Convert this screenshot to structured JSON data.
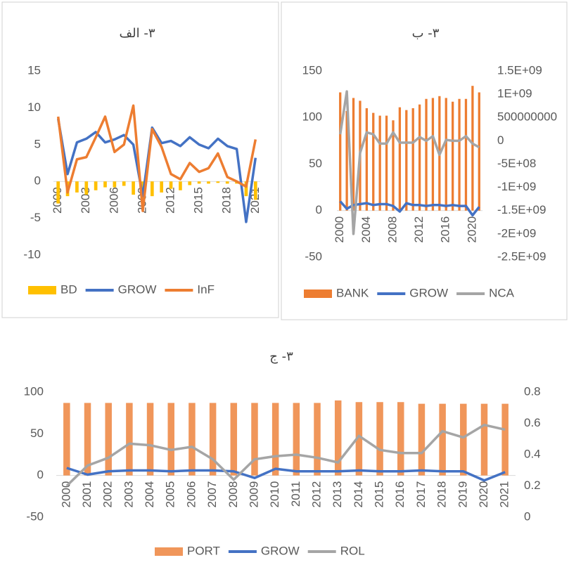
{
  "chart_data": [
    {
      "type": "combo",
      "title": "۳- الف",
      "categories": [
        "2000",
        null,
        null,
        "2003",
        null,
        null,
        "2006",
        null,
        null,
        "2009",
        null,
        null,
        "2012",
        null,
        null,
        "2015",
        null,
        null,
        "2018",
        null,
        null,
        "2021"
      ],
      "ylim": [
        -10,
        15
      ],
      "yticks": [
        -10,
        -5,
        0,
        5,
        10,
        15
      ],
      "grid": false,
      "series": [
        {
          "name": "BD",
          "type": "bar",
          "color": "#ffc000",
          "values": [
            -3,
            -2,
            -1.5,
            -1.8,
            -1.2,
            -0.8,
            -0.8,
            -0.6,
            -1.8,
            -2.5,
            -2,
            -1.5,
            -1,
            -1.2,
            -0.5,
            -0.3,
            -0.3,
            -0.2,
            -0.3,
            -0.3,
            -2,
            -2.5
          ]
        },
        {
          "name": "GROW",
          "type": "line",
          "color": "#4472c4",
          "values": [
            8.5,
            1,
            5.3,
            5.8,
            6.7,
            5.3,
            5.7,
            6.3,
            5,
            -2,
            7.3,
            5.2,
            5.5,
            4.8,
            6,
            5,
            4.5,
            5.8,
            4.8,
            4.4,
            -5.5,
            3.2
          ]
        },
        {
          "name": "InF",
          "type": "line",
          "color": "#ed7d31",
          "values": [
            8.8,
            -1.5,
            3,
            3.3,
            6,
            8.8,
            4,
            5,
            10.3,
            -4,
            7.1,
            4.7,
            1,
            0.3,
            2.5,
            1.3,
            1.8,
            3.8,
            0.6,
            0,
            -0.7,
            5.7
          ]
        }
      ]
    },
    {
      "type": "combo",
      "title": "۳- ب",
      "categories": [
        "2000",
        null,
        null,
        null,
        "2004",
        null,
        null,
        null,
        "2008",
        null,
        null,
        null,
        "2012",
        null,
        null,
        null,
        "2016",
        null,
        null,
        null,
        "2020",
        null
      ],
      "ylim": [
        -50,
        150
      ],
      "yticks": [
        -50,
        0,
        50,
        100,
        150
      ],
      "y2lim": [
        -2500000000,
        1500000000
      ],
      "y2ticks": [
        {
          "value": -2500000000,
          "label": "-2.5E+09"
        },
        {
          "value": -2000000000,
          "label": "-2E+09"
        },
        {
          "value": -1500000000,
          "label": "-1.5E+09"
        },
        {
          "value": -1000000000,
          "label": "-1E+09"
        },
        {
          "value": -500000000,
          "label": "-5E+08"
        },
        0,
        500000000,
        {
          "value": 1000000000,
          "label": "1E+09"
        },
        {
          "value": 1500000000,
          "label": "1.5E+09"
        }
      ],
      "grid": false,
      "series": [
        {
          "name": "BANK",
          "type": "bar",
          "color": "#ed7d31",
          "values": [
            127,
            107,
            121,
            118,
            110,
            105,
            102,
            102,
            97,
            111,
            108,
            110,
            114,
            120,
            121,
            123,
            121,
            117,
            120,
            120,
            134,
            127
          ]
        },
        {
          "name": "GROW",
          "type": "line",
          "color": "#4472c4",
          "values": [
            10,
            2,
            6,
            7,
            8,
            6,
            7,
            7,
            5,
            -1,
            8,
            6,
            6,
            5,
            6,
            6,
            5,
            6,
            5,
            5,
            -5,
            4
          ]
        },
        {
          "name": "NCA",
          "type": "line",
          "axis": "y2",
          "color": "#a5a5a5",
          "values": [
            140000000,
            1060000000,
            -2000000000,
            -260000000,
            180000000,
            140000000,
            -60000000,
            -60000000,
            180000000,
            -40000000,
            -40000000,
            -40000000,
            80000000,
            0,
            100000000,
            -300000000,
            20000000,
            0,
            0,
            100000000,
            -60000000,
            -140000000
          ]
        }
      ]
    },
    {
      "type": "combo",
      "title": "۳- ج",
      "categories": [
        "2000",
        "2001",
        "2002",
        "2003",
        "2004",
        "2005",
        "2006",
        "2007",
        "2008",
        "2009",
        "2010",
        "2011",
        "2012",
        "2013",
        "2014",
        "2015",
        "2016",
        "2017",
        "2018",
        "2019",
        "2020",
        "2021"
      ],
      "ylim": [
        -50,
        100
      ],
      "yticks": [
        -50,
        0,
        50,
        100
      ],
      "y2lim": [
        0,
        0.8
      ],
      "y2ticks": [
        0,
        0.2,
        0.4,
        0.6,
        0.8
      ],
      "grid": false,
      "series": [
        {
          "name": "PORT",
          "type": "bar",
          "color": "#f0965a",
          "values": [
            87,
            87,
            87,
            87,
            87,
            87,
            87,
            87,
            87,
            87,
            87,
            87,
            87,
            90,
            88,
            88,
            88,
            86,
            86,
            86,
            86,
            86
          ]
        },
        {
          "name": "GROW",
          "type": "line",
          "color": "#4472c4",
          "values": [
            9,
            1,
            5,
            6,
            6,
            5,
            6,
            6,
            5,
            -3,
            8,
            5,
            5,
            5,
            6,
            5,
            5,
            6,
            5,
            5,
            -6,
            4
          ]
        },
        {
          "name": "ROL",
          "type": "line",
          "axis": "y2",
          "color": "#a5a5a5",
          "values": [
            0.2,
            0.33,
            0.38,
            0.47,
            0.46,
            0.43,
            0.45,
            0.37,
            0.24,
            0.37,
            0.39,
            0.4,
            0.38,
            0.35,
            0.52,
            0.43,
            0.41,
            0.41,
            0.55,
            0.51,
            0.59,
            0.56
          ]
        }
      ]
    }
  ]
}
